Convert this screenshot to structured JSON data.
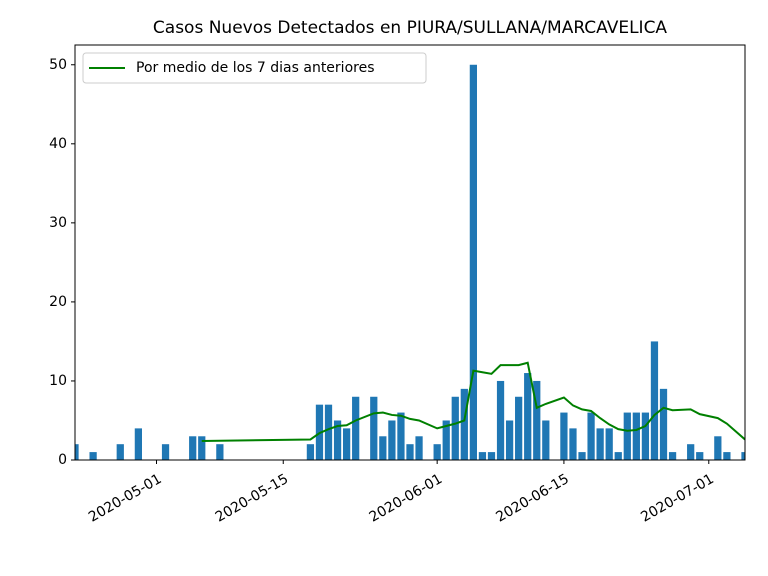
{
  "chart_data": {
    "type": "bar",
    "title": "Casos Nuevos Detectados en PIURA/SULLANA/MARCAVELICA",
    "series": [
      {
        "type": "bar",
        "color": "#1f77b4",
        "x": [
          "2020-04-22",
          "2020-04-24",
          "2020-04-27",
          "2020-04-29",
          "2020-05-02",
          "2020-05-05",
          "2020-05-06",
          "2020-05-08",
          "2020-05-18",
          "2020-05-19",
          "2020-05-20",
          "2020-05-21",
          "2020-05-22",
          "2020-05-23",
          "2020-05-25",
          "2020-05-26",
          "2020-05-27",
          "2020-05-28",
          "2020-05-29",
          "2020-05-30",
          "2020-06-01",
          "2020-06-02",
          "2020-06-03",
          "2020-06-04",
          "2020-06-05",
          "2020-06-06",
          "2020-06-07",
          "2020-06-08",
          "2020-06-09",
          "2020-06-10",
          "2020-06-11",
          "2020-06-12",
          "2020-06-13",
          "2020-06-15",
          "2020-06-16",
          "2020-06-17",
          "2020-06-18",
          "2020-06-19",
          "2020-06-20",
          "2020-06-21",
          "2020-06-22",
          "2020-06-23",
          "2020-06-24",
          "2020-06-25",
          "2020-06-26",
          "2020-06-27",
          "2020-06-29",
          "2020-06-30",
          "2020-07-02",
          "2020-07-03",
          "2020-07-05"
        ],
        "values": [
          2,
          1,
          2,
          4,
          2,
          3,
          3,
          2,
          2,
          7,
          7,
          5,
          4,
          8,
          8,
          3,
          5,
          6,
          2,
          3,
          2,
          5,
          8,
          9,
          50,
          1,
          1,
          10,
          5,
          8,
          11,
          10,
          5,
          6,
          4,
          1,
          6,
          4,
          4,
          1,
          6,
          6,
          6,
          15,
          9,
          1,
          2,
          1,
          3,
          1,
          1
        ]
      },
      {
        "type": "line",
        "name": "Por medio de los 7 dias anteriores",
        "color": "#008000",
        "x": [
          "2020-05-06",
          "2020-05-18",
          "2020-05-19",
          "2020-05-20",
          "2020-05-21",
          "2020-05-22",
          "2020-05-23",
          "2020-05-25",
          "2020-05-26",
          "2020-05-27",
          "2020-05-28",
          "2020-05-29",
          "2020-05-30",
          "2020-06-01",
          "2020-06-02",
          "2020-06-03",
          "2020-06-04",
          "2020-06-05",
          "2020-06-06",
          "2020-06-07",
          "2020-06-08",
          "2020-06-09",
          "2020-06-10",
          "2020-06-11",
          "2020-06-12",
          "2020-06-13",
          "2020-06-15",
          "2020-06-16",
          "2020-06-17",
          "2020-06-18",
          "2020-06-19",
          "2020-06-20",
          "2020-06-21",
          "2020-06-22",
          "2020-06-23",
          "2020-06-24",
          "2020-06-25",
          "2020-06-26",
          "2020-06-27",
          "2020-06-29",
          "2020-06-30",
          "2020-07-02",
          "2020-07-03",
          "2020-07-05"
        ],
        "values": [
          2.4,
          2.6,
          3.4,
          3.9,
          4.3,
          4.4,
          5.0,
          5.9,
          6.0,
          5.7,
          5.6,
          5.2,
          5.0,
          4.0,
          4.3,
          4.6,
          5.0,
          11.3,
          11.1,
          10.9,
          12.0,
          12.0,
          12.0,
          12.3,
          6.6,
          7.1,
          7.9,
          6.9,
          6.4,
          6.2,
          5.3,
          4.5,
          3.9,
          3.7,
          3.8,
          4.3,
          5.7,
          6.6,
          6.3,
          6.4,
          5.8,
          5.3,
          4.6,
          2.6
        ]
      }
    ],
    "xlim": [
      "2020-04-22",
      "2020-07-05"
    ],
    "xticks": [
      "2020-05-01",
      "2020-05-15",
      "2020-06-01",
      "2020-06-15",
      "2020-07-01"
    ],
    "ylim": [
      0,
      52.5
    ],
    "yticks": [
      0,
      10,
      20,
      30,
      40,
      50
    ],
    "legend": "upper left"
  }
}
